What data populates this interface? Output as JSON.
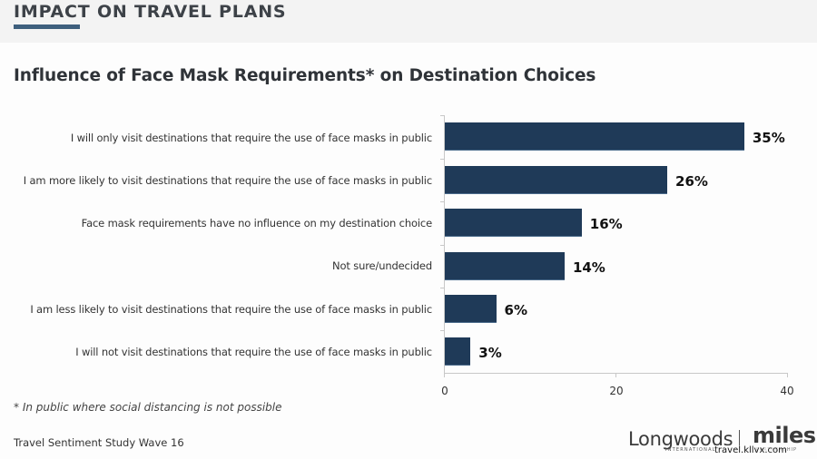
{
  "header": {
    "section_title": "IMPACT ON TRAVEL PLANS",
    "accent_color": "#3e5f7d",
    "background_color": "#f3f3f3"
  },
  "chart_title": "Influence of Face Mask Requirements* on Destination Choices",
  "chart_data": {
    "type": "bar",
    "orientation": "horizontal",
    "title": "Influence of Face Mask Requirements* on Destination Choices",
    "categories": [
      "I will only visit destinations that require the use of face masks in public",
      "I am more likely to visit destinations that require the use of face masks in public",
      "Face mask requirements have no influence on my destination choice",
      "Not sure/undecided",
      "I am less likely to visit destinations that require the use of face masks in public",
      "I will not visit destinations that require the use of face masks in public"
    ],
    "values": [
      35,
      26,
      16,
      14,
      6,
      3
    ],
    "value_labels": [
      "35%",
      "26%",
      "16%",
      "14%",
      "6%",
      "3%"
    ],
    "xlabel": "",
    "ylabel": "",
    "xlim": [
      0,
      40
    ],
    "xticks": [
      0,
      20,
      40
    ],
    "xtick_labels": [
      "0",
      "20",
      "40"
    ],
    "grid": false,
    "legend": null,
    "bar_color": "#1f3a58"
  },
  "footnote": "* In public where social distancing is not possible",
  "source": "Travel Sentiment Study Wave 16",
  "logos": {
    "longwoods": "Longwoods",
    "longwoods_sub": "INTERNATIONAL",
    "miles": "miles",
    "miles_sub": "PARTNERSHIP"
  },
  "watermark": "travel.kllvx.com"
}
